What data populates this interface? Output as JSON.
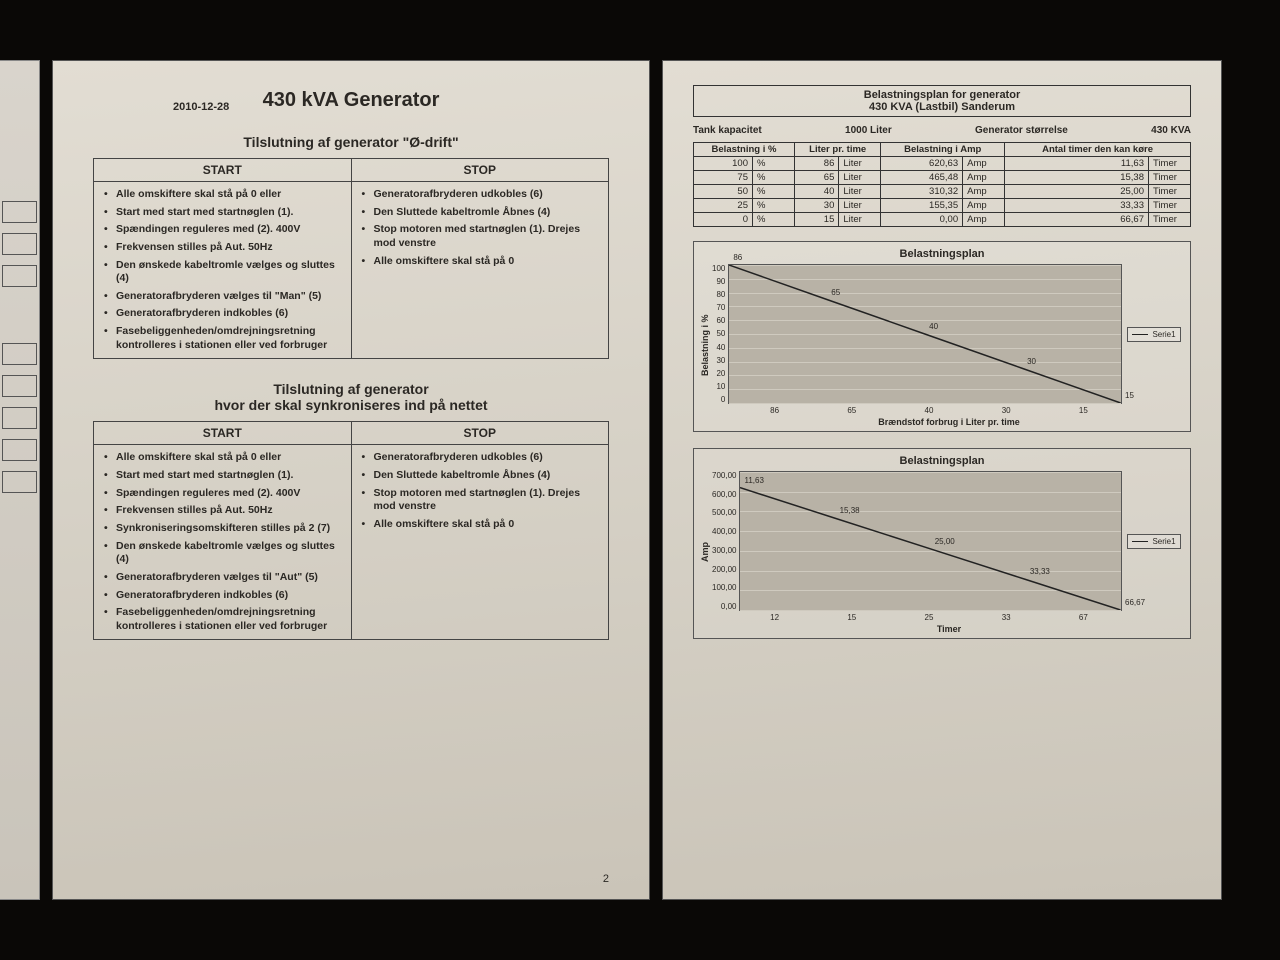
{
  "left": {
    "date": "2010-12-28",
    "title": "430 kVA Generator",
    "section1_title": "Tilslutning af generator \"Ø-drift\"",
    "section2_title": "Tilslutning af generator\nhvor der skal synkroniseres ind på nettet",
    "col_start": "START",
    "col_stop": "STOP",
    "s1_start": [
      "Alle omskiftere skal stå på 0 eller",
      "Start med start med startnøglen (1).",
      "Spændingen reguleres med (2). 400V",
      "Frekvensen stilles på Aut. 50Hz",
      "Den ønskede kabeltromle vælges og sluttes (4)",
      "Generatorafbryderen vælges til \"Man\" (5)",
      "Generatorafbryderen indkobles (6)",
      "Fasebeliggenheden/omdrejningsretning kontrolleres i stationen eller ved forbruger"
    ],
    "s1_stop": [
      "Generatorafbryderen udkobles (6)",
      "Den Sluttede kabeltromle Åbnes (4)",
      "Stop motoren med startnøglen (1). Drejes mod venstre",
      "Alle omskiftere skal stå på 0"
    ],
    "s2_start": [
      "Alle omskiftere skal stå på 0 eller",
      "Start med start med startnøglen (1).",
      "Spændingen reguleres med (2). 400V",
      "Frekvensen stilles på Aut. 50Hz",
      "Synkroniseringsomskifteren stilles på 2 (7)",
      "Den ønskede kabeltromle vælges og sluttes (4)",
      "Generatorafbryderen vælges til \"Aut\" (5)",
      "Generatorafbryderen indkobles (6)",
      "Fasebeliggenheden/omdrejningsretning kontrolleres i stationen eller ved forbruger"
    ],
    "s2_stop": [
      "Generatorafbryderen udkobles (6)",
      "Den Sluttede kabeltromle Åbnes (4)",
      "Stop motoren med startnøglen (1). Drejes mod venstre",
      "Alle omskiftere skal stå på 0"
    ],
    "page_num": "2"
  },
  "right": {
    "header1": "Belastningsplan for generator",
    "header2": "430 KVA (Lastbil) Sanderum",
    "meta": {
      "tank_lbl": "Tank kapacitet",
      "tank_val": "1000  Liter",
      "gen_lbl": "Generator størrelse",
      "gen_val": "430  KVA"
    },
    "table": {
      "headers": [
        "Belastning i %",
        "Liter pr. time",
        "Belastning i Amp",
        "Antal timer den kan køre"
      ],
      "units": [
        "%",
        "Liter",
        "Amp",
        "Timer"
      ],
      "rows": [
        [
          "100",
          "86",
          "620,63",
          "11,63"
        ],
        [
          "75",
          "65",
          "465,48",
          "15,38"
        ],
        [
          "50",
          "40",
          "310,32",
          "25,00"
        ],
        [
          "25",
          "30",
          "155,35",
          "33,33"
        ],
        [
          "0",
          "15",
          "0,00",
          "66,67"
        ]
      ]
    },
    "chart1": {
      "type": "line",
      "title": "Belastningsplan",
      "ylabel": "Belastning i %",
      "xlabel": "Brændstof forbrug i Liter pr. time",
      "legend": "Serie1",
      "y_ticks": [
        "100",
        "90",
        "80",
        "70",
        "60",
        "50",
        "40",
        "30",
        "20",
        "10",
        "0"
      ],
      "x_ticks": [
        "86",
        "65",
        "40",
        "30",
        "15"
      ],
      "ylim": [
        0,
        100
      ],
      "points": [
        {
          "x": 0,
          "y": 100,
          "lbl": "86"
        },
        {
          "x": 1,
          "y": 75,
          "lbl": "65"
        },
        {
          "x": 2,
          "y": 50,
          "lbl": "40"
        },
        {
          "x": 3,
          "y": 25,
          "lbl": "30"
        },
        {
          "x": 4,
          "y": 0,
          "lbl": "15"
        }
      ],
      "line_color": "#222",
      "grid_color": "#cfcabf",
      "bg": "#b8b2a6"
    },
    "chart2": {
      "type": "line",
      "title": "Belastningsplan",
      "ylabel": "Amp",
      "xlabel": "Timer",
      "legend": "Serie1",
      "y_ticks": [
        "700,00",
        "600,00",
        "500,00",
        "400,00",
        "300,00",
        "200,00",
        "100,00",
        "0,00"
      ],
      "x_ticks": [
        "12",
        "15",
        "25",
        "33",
        "67"
      ],
      "ylim": [
        0,
        700
      ],
      "points": [
        {
          "x": 0,
          "y": 620.63,
          "lbl": "11,63"
        },
        {
          "x": 1,
          "y": 465.48,
          "lbl": "15,38"
        },
        {
          "x": 2,
          "y": 310.32,
          "lbl": "25,00"
        },
        {
          "x": 3,
          "y": 155.35,
          "lbl": "33,33"
        },
        {
          "x": 4,
          "y": 0,
          "lbl": "66,67"
        }
      ],
      "line_color": "#222",
      "grid_color": "#cfcabf",
      "bg": "#b8b2a6"
    }
  }
}
